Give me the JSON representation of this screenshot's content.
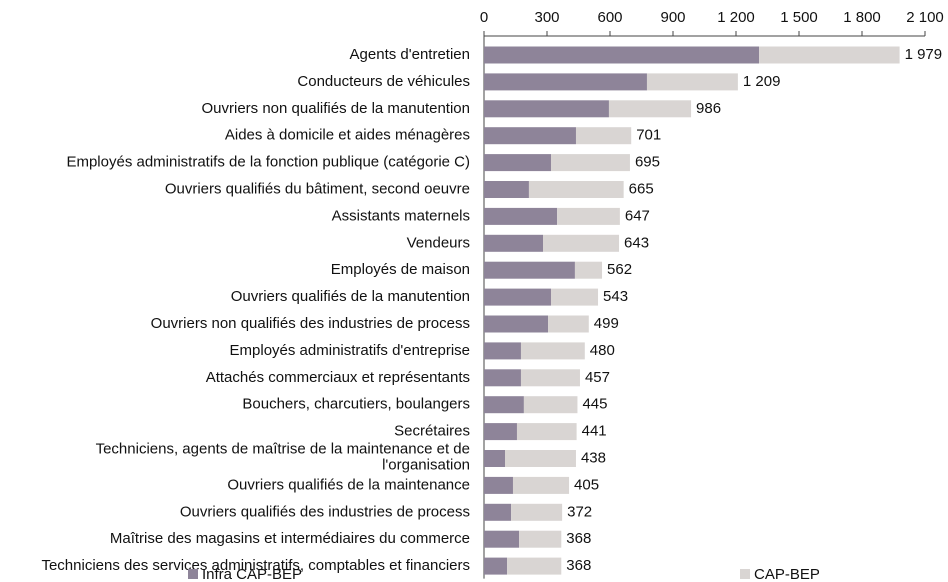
{
  "chart_data": {
    "type": "stacked-bar-horizontal",
    "categories": [
      "Agents d'entretien",
      "Conducteurs de véhicules",
      "Ouvriers non qualifiés de la manutention",
      "Aides à domicile et aides ménagères",
      "Employés administratifs de la fonction publique (catégorie C)",
      "Ouvriers qualifiés du bâtiment, second oeuvre",
      "Assistants maternels",
      "Vendeurs",
      "Employés de maison",
      "Ouvriers qualifiés de la manutention",
      "Ouvriers non qualifiés des industries de process",
      "Employés administratifs d'entreprise",
      "Attachés commerciaux et représentants",
      "Bouchers, charcutiers, boulangers",
      "Secrétaires",
      "Techniciens, agents de maîtrise de la maintenance et de l'organisation",
      "Ouvriers qualifiés de la maintenance",
      "Ouvriers qualifiés des industries de process",
      "Maîtrise des magasins et intermédiaires du commerce",
      "Techniciens des services administratifs, comptables et financiers"
    ],
    "series": [
      {
        "name": "Infra CAP-BEP",
        "color": "#8e8499",
        "values": [
          1310,
          776,
          595,
          438,
          319,
          214,
          348,
          281,
          433,
          319,
          305,
          176,
          176,
          190,
          157,
          100,
          138,
          129,
          167,
          110
        ]
      },
      {
        "name": "CAP-BEP",
        "color": "#d9d5d3",
        "values": [
          669,
          433,
          391,
          263,
          376,
          451,
          299,
          362,
          129,
          224,
          194,
          304,
          281,
          255,
          284,
          338,
          267,
          243,
          201,
          258
        ]
      }
    ],
    "totals": [
      1979,
      1209,
      986,
      701,
      695,
      665,
      647,
      643,
      562,
      543,
      499,
      480,
      457,
      445,
      441,
      438,
      405,
      372,
      368,
      368
    ],
    "total_labels": [
      "1 979",
      "1 209",
      "986",
      "701",
      "695",
      "665",
      "647",
      "643",
      "562",
      "543",
      "499",
      "480",
      "457",
      "445",
      "441",
      "438",
      "405",
      "372",
      "368",
      "368"
    ],
    "xlim": [
      0,
      2100
    ],
    "xticks": [
      0,
      300,
      600,
      900,
      {
        "value": 1200,
        "label": "1 200"
      },
      {
        "value": 1500,
        "label": "1 500"
      },
      {
        "value": 1800,
        "label": "1 800"
      },
      {
        "value": 2100,
        "label": "2 100"
      }
    ],
    "legend": "bottom"
  }
}
